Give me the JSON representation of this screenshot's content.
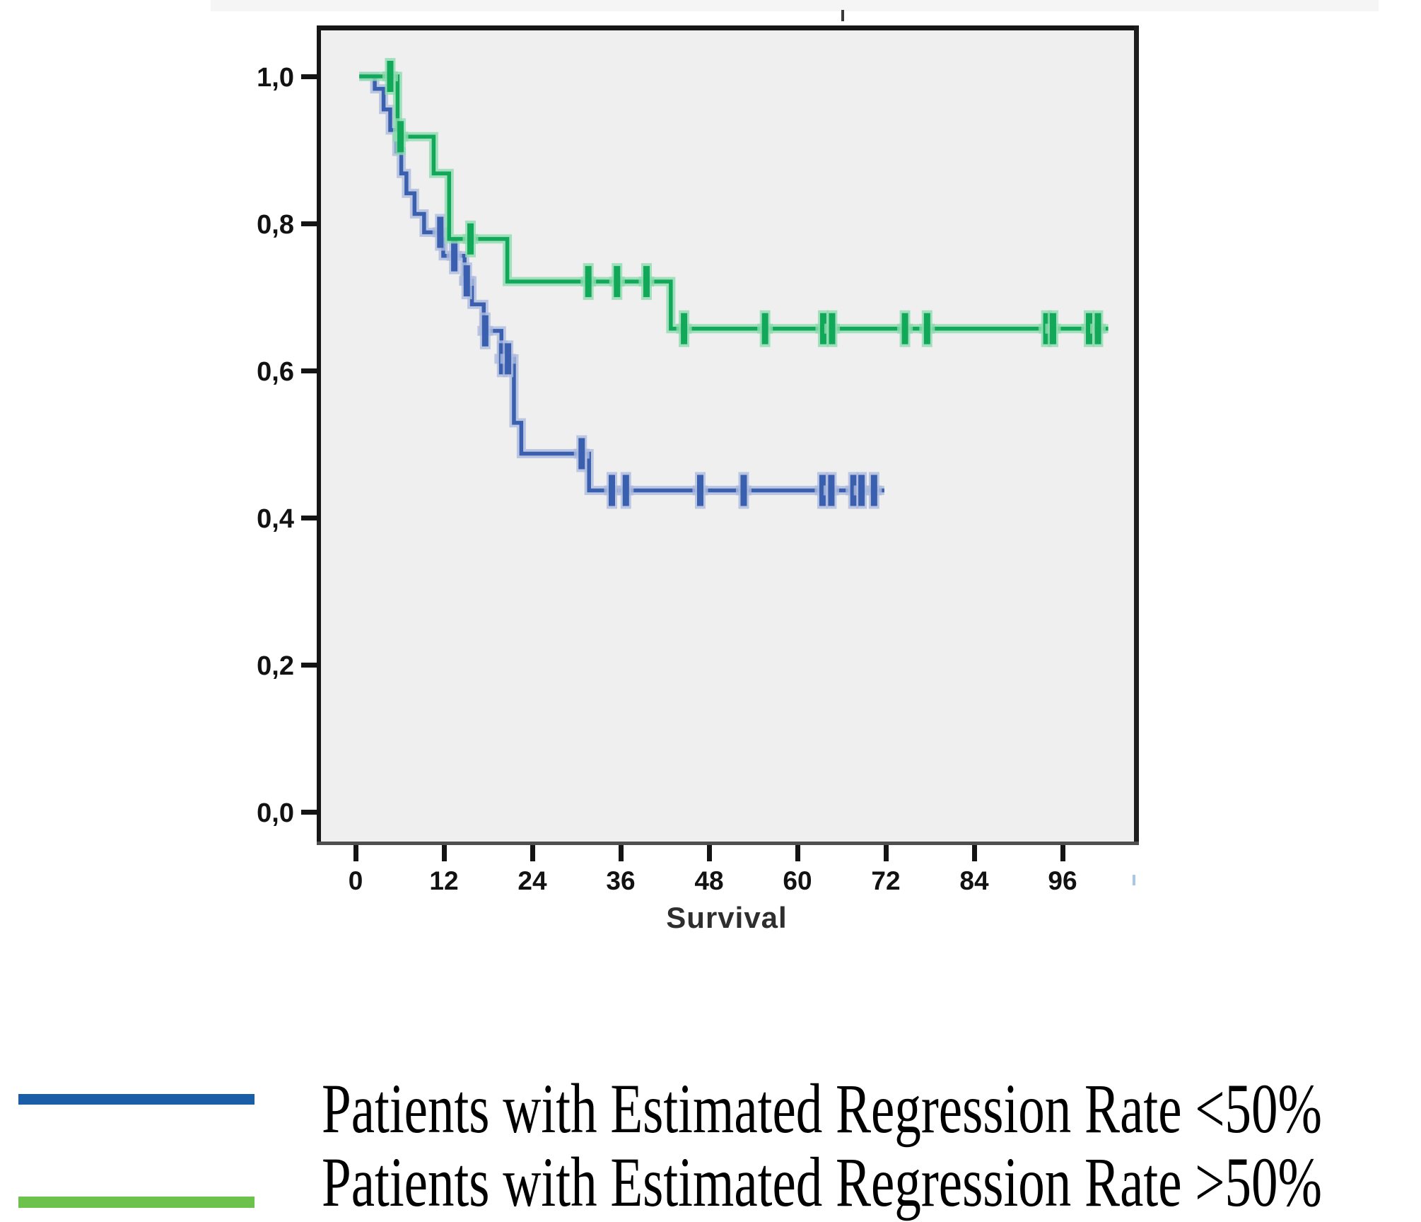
{
  "chart_data": {
    "type": "line",
    "subtype": "kaplan_meier_step",
    "title": "",
    "xlabel": "Survival",
    "ylabel": "",
    "grid": false,
    "plot_background": "#efefef",
    "x_axis": {
      "range": [
        -5.1,
        106.0
      ],
      "ticks": [
        0,
        12,
        24,
        36,
        48,
        60,
        72,
        84,
        96
      ]
    },
    "y_axis": {
      "range": [
        -0.044,
        1.066
      ],
      "ticks": [
        {
          "value": 0.0,
          "label": "0,0"
        },
        {
          "value": 0.2,
          "label": "0,2"
        },
        {
          "value": 0.4,
          "label": "0,4"
        },
        {
          "value": 0.6,
          "label": "0,6"
        },
        {
          "value": 0.8,
          "label": "0,8"
        },
        {
          "value": 1.0,
          "label": "1,0"
        }
      ]
    },
    "series": [
      {
        "name": "Patients with Estimated Regression Rate <50%",
        "color": "#3a5fae",
        "halo_color": "#aebcdf",
        "points": [
          [
            0.5,
            1.0
          ],
          [
            2.6,
            0.983
          ],
          [
            3.8,
            0.955
          ],
          [
            4.7,
            0.927
          ],
          [
            5.6,
            0.898
          ],
          [
            6.2,
            0.868
          ],
          [
            6.9,
            0.841
          ],
          [
            8.0,
            0.813
          ],
          [
            9.3,
            0.788
          ],
          [
            11.9,
            0.756
          ],
          [
            14.8,
            0.722
          ],
          [
            15.8,
            0.69
          ],
          [
            17.4,
            0.654
          ],
          [
            19.8,
            0.616
          ],
          [
            21.5,
            0.529
          ],
          [
            22.5,
            0.487
          ],
          [
            31.7,
            0.437
          ],
          [
            71.8,
            0.437
          ]
        ],
        "censors": [
          [
            11.5,
            0.788
          ],
          [
            13.4,
            0.756
          ],
          [
            15.1,
            0.722
          ],
          [
            17.6,
            0.654
          ],
          [
            19.9,
            0.616
          ],
          [
            20.7,
            0.616
          ],
          [
            30.7,
            0.487
          ],
          [
            34.8,
            0.437
          ],
          [
            36.7,
            0.437
          ],
          [
            46.8,
            0.437
          ],
          [
            52.7,
            0.437
          ],
          [
            63.4,
            0.437
          ],
          [
            64.6,
            0.437
          ],
          [
            67.6,
            0.437
          ],
          [
            68.7,
            0.437
          ],
          [
            70.4,
            0.437
          ]
        ]
      },
      {
        "name": "Patients with Estimated Regression Rate >50%",
        "color": "#11a85a",
        "halo_color": "#8fdcb0",
        "points": [
          [
            0.5,
            1.0
          ],
          [
            5.7,
            0.918
          ],
          [
            10.6,
            0.868
          ],
          [
            12.7,
            0.779
          ],
          [
            20.6,
            0.721
          ],
          [
            42.8,
            0.657
          ],
          [
            102.2,
            0.657
          ]
        ],
        "censors": [
          [
            4.7,
            1.0
          ],
          [
            6.1,
            0.918
          ],
          [
            15.6,
            0.779
          ],
          [
            31.6,
            0.721
          ],
          [
            35.5,
            0.721
          ],
          [
            39.5,
            0.721
          ],
          [
            44.6,
            0.657
          ],
          [
            55.6,
            0.657
          ],
          [
            63.5,
            0.657
          ],
          [
            64.7,
            0.657
          ],
          [
            74.6,
            0.657
          ],
          [
            77.6,
            0.657
          ],
          [
            93.8,
            0.657
          ],
          [
            94.7,
            0.657
          ],
          [
            99.6,
            0.657
          ],
          [
            100.8,
            0.657
          ]
        ]
      }
    ],
    "legend": {
      "position": "bottom-left",
      "entries": [
        {
          "label": "Patients with Estimated Regression Rate <50%",
          "swatch_color": "#1b5ea8"
        },
        {
          "label": "Patients with Estimated Regression Rate >50%",
          "swatch_color": "#6cc24a"
        }
      ]
    }
  }
}
